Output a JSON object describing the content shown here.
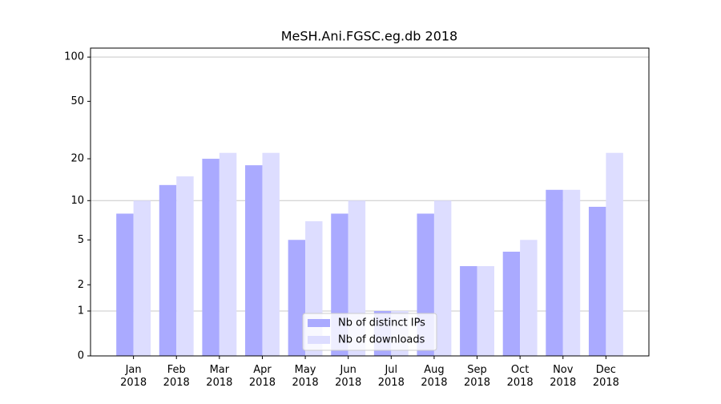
{
  "chart_data": {
    "type": "bar",
    "title": "MeSH.Ani.FGSC.eg.db 2018",
    "categories": [
      "Jan 2018",
      "Feb 2018",
      "Mar 2018",
      "Apr 2018",
      "May 2018",
      "Jun 2018",
      "Jul 2018",
      "Aug 2018",
      "Sep 2018",
      "Oct 2018",
      "Nov 2018",
      "Dec 2018"
    ],
    "series": [
      {
        "name": "Nb of distinct IPs",
        "color": "#aaaaff",
        "values": [
          8,
          13,
          20,
          18,
          5,
          8,
          1,
          8,
          3,
          4,
          12,
          9
        ]
      },
      {
        "name": "Nb of downloads",
        "color": "#ddddff",
        "values": [
          10,
          15,
          22,
          22,
          7,
          10,
          1,
          10,
          3,
          5,
          12,
          22
        ]
      }
    ],
    "yscale": "log1p",
    "ylim": [
      0,
      115
    ],
    "yticks": [
      0,
      1,
      2,
      5,
      10,
      20,
      50,
      100
    ],
    "grid": [
      1,
      10,
      100
    ],
    "legend": "lower center"
  }
}
